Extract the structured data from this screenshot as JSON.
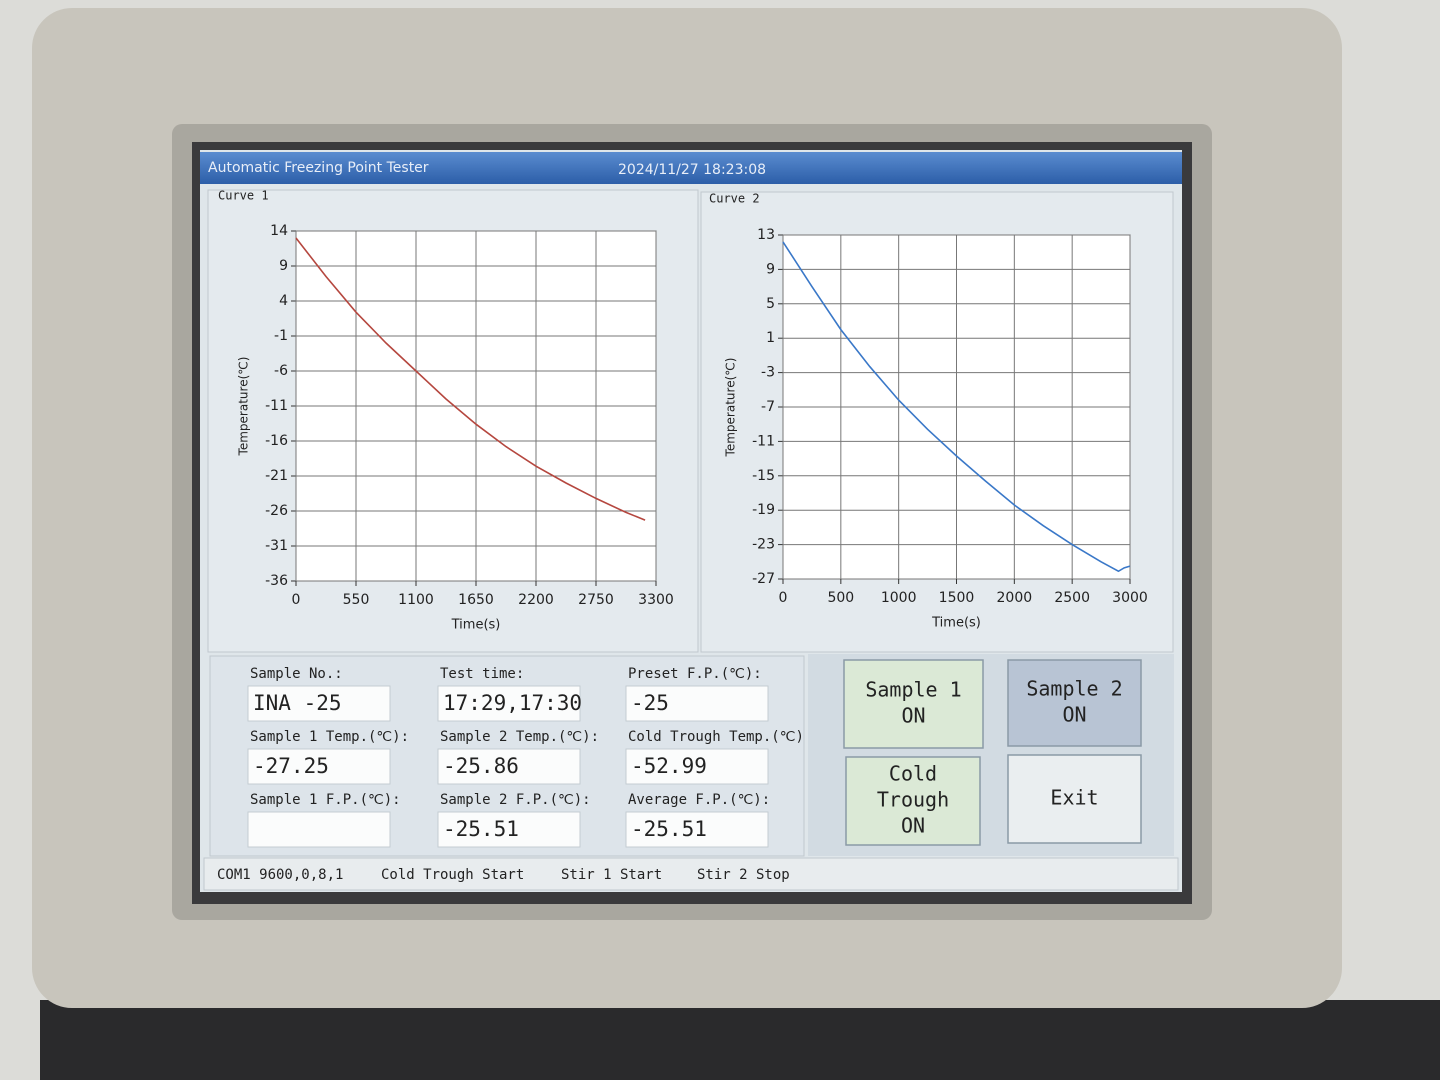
{
  "window": {
    "title": "Automatic Freezing Point Tester",
    "datetime": "2024/11/27 18:23:08"
  },
  "chart_data": [
    {
      "type": "line",
      "title": "Curve 1",
      "x_label": "Time(s)",
      "y_label": "Temperature(℃)",
      "color": "#b5473f",
      "grid": true,
      "x": [
        0,
        275,
        550,
        825,
        1100,
        1375,
        1650,
        1925,
        2200,
        2475,
        2750,
        3025,
        3200
      ],
      "values": [
        13,
        7.5,
        2.4,
        -2,
        -6,
        -10,
        -13.6,
        -16.8,
        -19.6,
        -22,
        -24.2,
        -26.2,
        -27.3
      ],
      "xlim": [
        0,
        3300
      ],
      "xticks": [
        0,
        550,
        1100,
        1650,
        2200,
        2750,
        3300
      ],
      "ylim": [
        -36,
        14
      ],
      "yticks": [
        14,
        9,
        4,
        -1,
        -6,
        -11,
        -16,
        -21,
        -26,
        -31,
        -36
      ]
    },
    {
      "type": "line",
      "title": "Curve 2",
      "x_label": "Time(s)",
      "y_label": "Temperature(℃)",
      "color": "#3a78c8",
      "grid": true,
      "x": [
        0,
        250,
        500,
        750,
        1000,
        1250,
        1500,
        1750,
        2000,
        2250,
        2500,
        2750,
        2900,
        2950,
        3000
      ],
      "values": [
        12.2,
        7,
        2,
        -2.3,
        -6.2,
        -9.6,
        -12.7,
        -15.6,
        -18.4,
        -20.8,
        -23,
        -25,
        -26.1,
        -25.7,
        -25.5
      ],
      "xlim": [
        0,
        3000
      ],
      "xticks": [
        0,
        500,
        1000,
        1500,
        2000,
        2500,
        3000
      ],
      "ylim": [
        -27,
        13
      ],
      "yticks": [
        13,
        9,
        5,
        1,
        -3,
        -7,
        -11,
        -15,
        -19,
        -23,
        -27
      ]
    }
  ],
  "fields": [
    {
      "label": "Sample No.:",
      "value": "INA -25"
    },
    {
      "label": "Sample 1 Temp.(℃):",
      "value": "-27.25"
    },
    {
      "label": "Sample 1 F.P.(℃):"
    },
    {
      "label": "Test time:",
      "value": "17:29,17:30"
    },
    {
      "label": "Sample 2 Temp.(℃):",
      "value": "-25.86"
    },
    {
      "label": "Sample 2 F.P.(℃):",
      "value": "-25.51"
    },
    {
      "label": "Preset F.P.(℃):",
      "value": "-25"
    },
    {
      "label": "Cold Trough Temp.(℃)",
      "value": "-52.99"
    },
    {
      "label": "Average F.P.(℃):",
      "value": "-25.51"
    }
  ],
  "buttons": [
    {
      "lines": [
        "Sample 1",
        "ON"
      ]
    },
    {
      "lines": [
        "Sample 2",
        "ON"
      ]
    },
    {
      "lines": [
        "Cold",
        "Trough",
        "ON"
      ]
    },
    {
      "lines": [
        "Exit"
      ]
    }
  ],
  "status_bar": [
    "COM1 9600,0,8,1",
    "Cold Trough Start",
    "Stir 1 Start",
    "Stir 2 Stop"
  ]
}
